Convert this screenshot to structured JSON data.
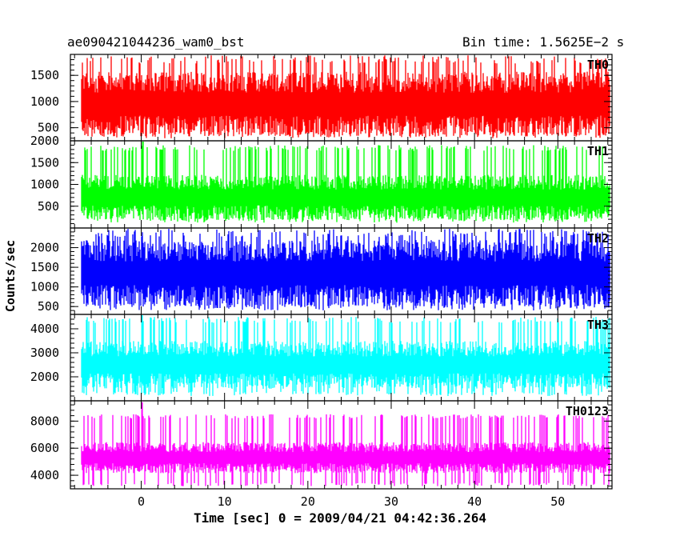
{
  "header": {
    "left_title": "ae090421044236_wam0_bst",
    "right_title": "Bin time: 1.5625E−2 s"
  },
  "chart_data": {
    "type": "line",
    "description_note": "",
    "xlabel": "Time [sec] 0 = 2009/04/21 04:42:36.264",
    "ylabel": "Counts/sec",
    "xlim": [
      -8.5,
      56.5
    ],
    "x_ticks": [
      0,
      10,
      20,
      30,
      40,
      50
    ],
    "grid": false,
    "panels": [
      {
        "name": "TH0",
        "color": "#ff0000",
        "ylim": [
          250,
          1900
        ],
        "y_ticks": [
          500,
          1000,
          1500
        ],
        "baseline": 950,
        "amp": 620,
        "floor": 300,
        "ceil": 1880,
        "spikes": []
      },
      {
        "name": "TH1",
        "color": "#00ff00",
        "ylim": [
          0,
          2000
        ],
        "y_ticks": [
          500,
          1000,
          1500,
          2000
        ],
        "baseline": 700,
        "amp": 520,
        "floor": 120,
        "ceil": 1900,
        "spikes": [
          [
            0.2,
            2000
          ],
          [
            28.5,
            1900
          ],
          [
            2.4,
            1800
          ]
        ]
      },
      {
        "name": "TH2",
        "color": "#0000ff",
        "ylim": [
          300,
          2500
        ],
        "y_ticks": [
          500,
          1000,
          1500,
          2000
        ],
        "baseline": 1350,
        "amp": 850,
        "floor": 400,
        "ceil": 2480,
        "spikes": []
      },
      {
        "name": "TH3",
        "color": "#00ffff",
        "ylim": [
          1000,
          4600
        ],
        "y_ticks": [
          2000,
          3000,
          4000
        ],
        "baseline": 2500,
        "amp": 1000,
        "floor": 1200,
        "ceil": 4500,
        "spikes": [
          [
            0.1,
            4700
          ],
          [
            -2.2,
            4400
          ],
          [
            47.5,
            4300
          ]
        ]
      },
      {
        "name": "TH0123",
        "color": "#ff00ff",
        "ylim": [
          3000,
          9500
        ],
        "y_ticks": [
          4000,
          6000,
          8000
        ],
        "baseline": 5300,
        "amp": 1150,
        "floor": 3200,
        "ceil": 8500,
        "spikes": [
          [
            0.1,
            9400
          ],
          [
            -1.2,
            8200
          ]
        ]
      }
    ]
  }
}
